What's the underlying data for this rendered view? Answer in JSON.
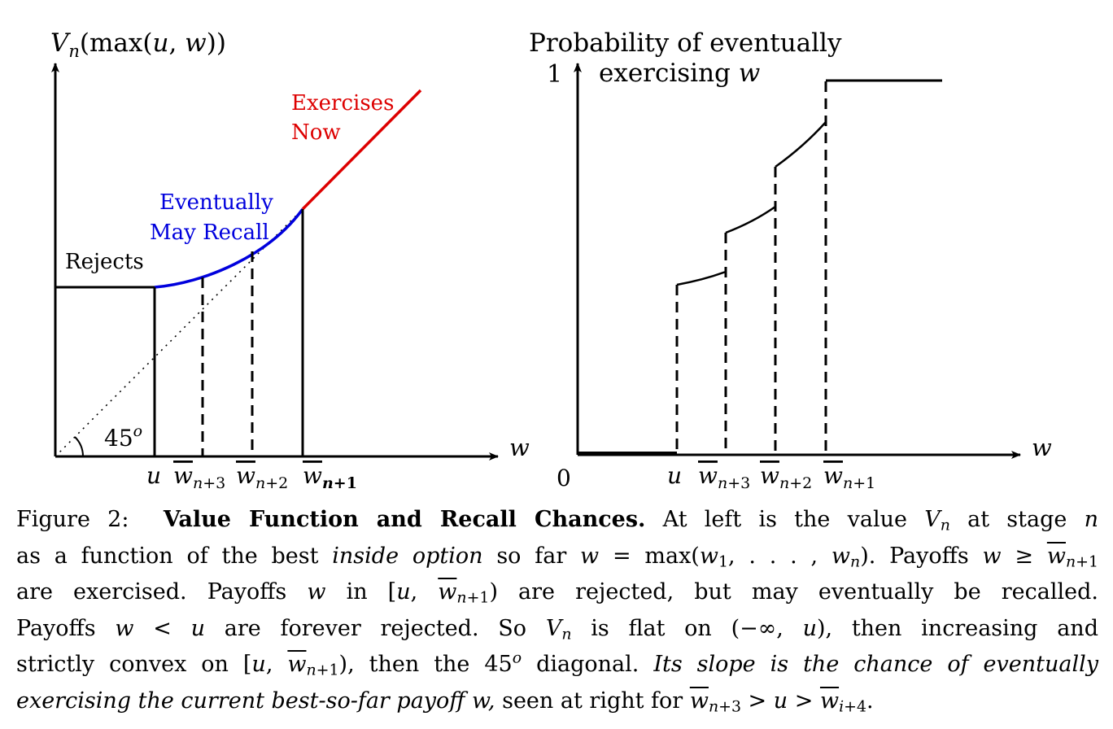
{
  "figure": {
    "left_panel": {
      "y_axis_label": "Vn(max(u, w))",
      "x_axis_label": "w",
      "angle_label": "45o",
      "region_labels": {
        "rejects": "Rejects",
        "may_recall_line1": "Eventually",
        "may_recall_line2": "May Recall",
        "exercises_line1": "Exercises",
        "exercises_line2": "Now"
      },
      "x_ticks": [
        "u",
        "w̄n+3",
        "w̄n+2",
        "w̄n+1"
      ],
      "colors": {
        "rejects": "#000000",
        "may_recall": "#0000dd",
        "exercises": "#dd0000"
      }
    },
    "right_panel": {
      "title_line1": "Probability of eventually",
      "title_line2": "exercising w",
      "y_tick_top": "1",
      "y_tick_origin": "0",
      "x_axis_label": "w",
      "x_ticks": [
        "u",
        "w̄n+3",
        "w̄n+2",
        "w̄n+1"
      ]
    }
  },
  "caption": {
    "label": "Figure 2:",
    "heading": "Value Function and Recall Chances.",
    "text": "At left is the value Vn at stage n as a function of the best inside option so far w = max(w1, . . . , wn). Payoffs w ≥ w̄n+1 are exercised. Payoffs w in [u, w̄n+1) are rejected, but may eventually be recalled. Payoffs w < u are forever rejected. So Vn is flat on (−∞, u), then increasing and strictly convex on [u, w̄n+1), then the 45o diagonal. Its slope is the chance of eventually exercising the current best-so-far payoff w, seen at right for w̄n+3 > u > w̄i+4."
  }
}
